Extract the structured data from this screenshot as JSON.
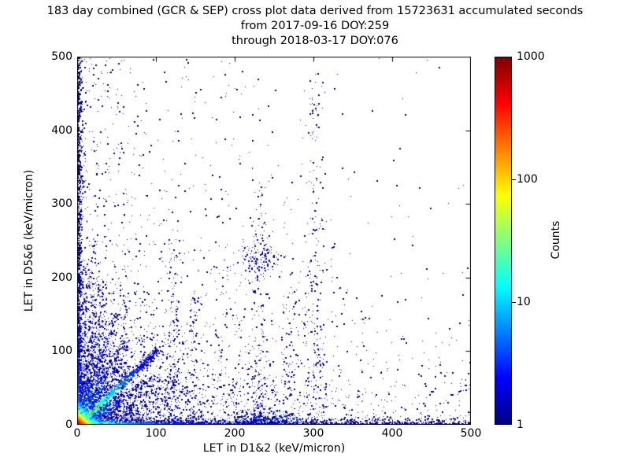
{
  "figure": {
    "title_lines": [
      "183 day combined (GCR & SEP) cross plot data derived from 15723631 accumulated seconds",
      "from 2017-09-16 DOY:259",
      "through 2018-03-17 DOY:076"
    ],
    "background": "#ffffff",
    "frame_color": "#000000"
  },
  "axes": {
    "xlabel": "LET in D1&2 (keV/micron)",
    "ylabel": "LET in D5&6 (keV/micron)",
    "xlim": [
      0,
      500
    ],
    "ylim": [
      0,
      500
    ],
    "x_ticks": [
      0,
      100,
      200,
      300,
      400,
      500
    ],
    "y_ticks": [
      0,
      100,
      200,
      300,
      400,
      500
    ]
  },
  "colorbar": {
    "label": "Counts",
    "scale": "log",
    "min": 1,
    "max": 1000,
    "ticks": [
      1000,
      100,
      10,
      1
    ],
    "colormap": "jet",
    "gradient_stops": [
      "#000080",
      "#0000ff",
      "#0080ff",
      "#00ffff",
      "#80ff80",
      "#ffff00",
      "#ff8000",
      "#ff0000",
      "#800000"
    ]
  },
  "chart_data": {
    "type": "heatmap",
    "title": "183 day combined (GCR & SEP) cross plot data derived from 15723631 accumulated seconds from 2017-09-16 DOY:259 through 2018-03-17 DOY:076",
    "xlabel": "LET in D1&2 (keV/micron)",
    "ylabel": "LET in D5&6 (keV/micron)",
    "xlim": [
      0,
      500
    ],
    "ylim": [
      0,
      500
    ],
    "counts_range": [
      1,
      1000
    ],
    "colormap": "jet",
    "count_color_scale": "log10 over 3 decades",
    "point_color_low": "#000080",
    "seed": 1337,
    "features": [
      {
        "type": "field",
        "n": 90,
        "x": {
          "d": "u",
          "a": 0,
          "b": 500
        },
        "y": {
          "d": "u",
          "a": 0,
          "b": 500
        }
      },
      {
        "type": "field",
        "n": 650,
        "x": {
          "d": "e",
          "s": 110
        },
        "y": {
          "d": "u",
          "a": 0,
          "b": 500
        }
      },
      {
        "type": "field",
        "n": 650,
        "x": {
          "d": "u",
          "a": 0,
          "b": 500
        },
        "y": {
          "d": "e",
          "s": 65
        }
      },
      {
        "type": "field",
        "n": 2300,
        "x": {
          "d": "e",
          "s": 60
        },
        "y": {
          "d": "e",
          "s": 52
        }
      },
      {
        "type": "field",
        "n": 420,
        "x": {
          "d": "g",
          "m": 205,
          "s": 75
        },
        "y": {
          "d": "e",
          "s": 85
        }
      },
      {
        "type": "column",
        "x": 10,
        "w": 2.5,
        "ymax": 230,
        "n": 130,
        "count0": 3
      },
      {
        "type": "column",
        "x": 16,
        "w": 2.5,
        "ymax": 210,
        "n": 110,
        "count0": 3
      },
      {
        "type": "column",
        "x": 23,
        "w": 3,
        "ymax": 260,
        "n": 120,
        "count0": 3
      },
      {
        "type": "column",
        "x": 31,
        "w": 3,
        "ymax": 190,
        "n": 90,
        "count0": 2
      },
      {
        "type": "column",
        "x": 58,
        "w": 3,
        "ymax": 170,
        "n": 80,
        "count0": 2
      },
      {
        "type": "column",
        "x": 122,
        "w": 4,
        "ymax": 255,
        "n": 110,
        "count0": 2
      },
      {
        "type": "column",
        "x": 146,
        "w": 4,
        "ymax": 185,
        "n": 70,
        "count0": 1
      },
      {
        "type": "column",
        "x": 232,
        "w": 6,
        "ymax": 330,
        "n": 170,
        "count0": 2
      },
      {
        "type": "column",
        "x": 268,
        "w": 5,
        "ymax": 210,
        "n": 60,
        "count0": 1
      },
      {
        "type": "column",
        "x": 301,
        "w": 7,
        "ymax": 490,
        "n": 200,
        "count0": 1
      },
      {
        "type": "cluster",
        "cx": 232,
        "cy": 226,
        "sx": 16,
        "sy": 14,
        "n": 130,
        "c0": 2
      },
      {
        "type": "cluster",
        "cx": 238,
        "cy": 9,
        "sx": 26,
        "sy": 5,
        "n": 300,
        "c0": 5
      },
      {
        "type": "ray",
        "angle": 80,
        "length": 200,
        "width": 4,
        "n": 180,
        "count0": 6,
        "cscale": 50
      },
      {
        "type": "ray",
        "angle": 72,
        "length": 160,
        "width": 3.5,
        "n": 220,
        "count0": 9,
        "cscale": 45
      },
      {
        "type": "ray",
        "angle": 63,
        "length": 130,
        "width": 3,
        "n": 260,
        "count0": 14,
        "cscale": 35
      },
      {
        "type": "ray",
        "angle": 56,
        "length": 100,
        "width": 2.8,
        "n": 170,
        "count0": 8,
        "cscale": 30
      },
      {
        "type": "ray",
        "angle": 45,
        "length": 145,
        "width": 2.2,
        "n": 900,
        "count0": 80,
        "cscale": 28
      },
      {
        "type": "ray",
        "angle": 34,
        "length": 120,
        "width": 2.8,
        "n": 240,
        "count0": 13,
        "cscale": 30
      },
      {
        "type": "ray",
        "angle": 27,
        "length": 140,
        "width": 3.2,
        "n": 190,
        "count0": 8,
        "cscale": 35
      },
      {
        "type": "ray",
        "angle": 18,
        "length": 150,
        "width": 4,
        "n": 150,
        "count0": 5,
        "cscale": 40
      },
      {
        "type": "field",
        "n": 1700,
        "x": {
          "d": "e",
          "s": 2.2
        },
        "y": {
          "d": "p",
          "max": 500,
          "k": 1.7
        },
        "count": [
          {
            "amp": 60,
            "sx": 2,
            "sy": 8
          },
          {
            "amp": 8,
            "sx": 3.5,
            "sy": 70
          }
        ]
      },
      {
        "type": "field",
        "n": 2700,
        "x": {
          "d": "p",
          "max": 500,
          "k": 2.0
        },
        "y": {
          "d": "e",
          "s": 2.6
        },
        "count": [
          {
            "amp": 900,
            "sx": 11,
            "sy": 2.5
          },
          {
            "amp": 45,
            "sx": 38,
            "sy": 3
          },
          {
            "amp": 6,
            "sx": 150,
            "sy": 5
          }
        ]
      },
      {
        "type": "field",
        "n": 1400,
        "x": {
          "d": "e",
          "s": 7
        },
        "y": {
          "d": "e",
          "s": 7
        },
        "count": [
          {
            "amp": 900,
            "sx": 6,
            "sy": 6
          },
          {
            "amp": 25,
            "sx": 14,
            "sy": 14
          }
        ]
      }
    ]
  }
}
